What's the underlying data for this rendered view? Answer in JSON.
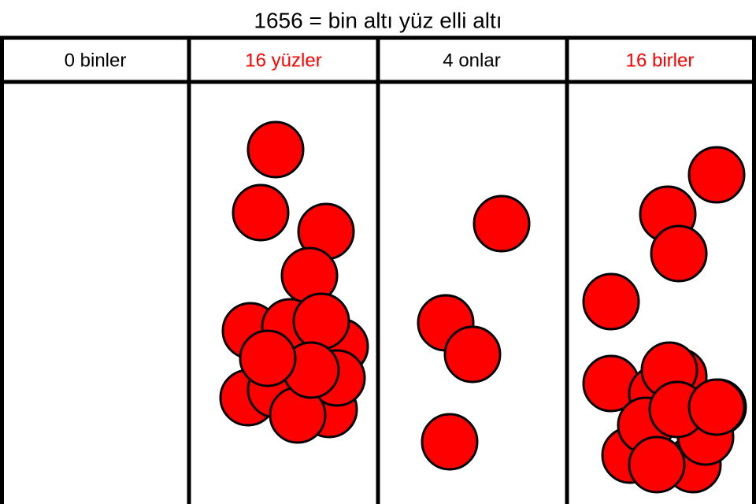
{
  "title": "1656 = bin altı yüz elli altı",
  "columns": [
    {
      "label": "0 binler",
      "color": "#000000"
    },
    {
      "label": "16 yüzler",
      "color": "#ff0000"
    },
    {
      "label": "4 onlar",
      "color": "#000000"
    },
    {
      "label": "16 birler",
      "color": "#ff0000"
    }
  ]
}
